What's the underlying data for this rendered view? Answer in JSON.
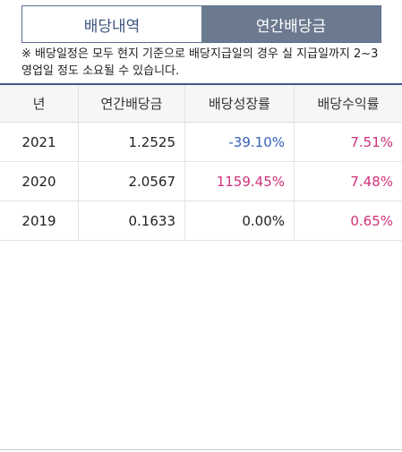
{
  "tabs": [
    {
      "label": "배당내역",
      "active": false
    },
    {
      "label": "연간배당금",
      "active": true
    }
  ],
  "notice": "※ 배당일정은 모두 현지 기준으로 배당지급일의 경우 실 지급일까지 2~3영업일 정도 소요될 수 있습니다.",
  "table": {
    "headers": [
      "년",
      "연간배당금",
      "배당성장률",
      "배당수익률"
    ],
    "rows": [
      {
        "year": "2021",
        "dividend": "1.2525",
        "growth": "-39.10%",
        "yield": "7.51%"
      },
      {
        "year": "2020",
        "dividend": "2.0567",
        "growth": "1159.45%",
        "yield": "7.48%"
      },
      {
        "year": "2019",
        "dividend": "0.1633",
        "growth": "0.00%",
        "yield": "0.65%"
      }
    ]
  },
  "colors": {
    "tab_active_bg": "#6b7a8f",
    "tab_inactive_text": "#3e5680",
    "negative": "#3660b8",
    "positive": "#d0307a"
  }
}
